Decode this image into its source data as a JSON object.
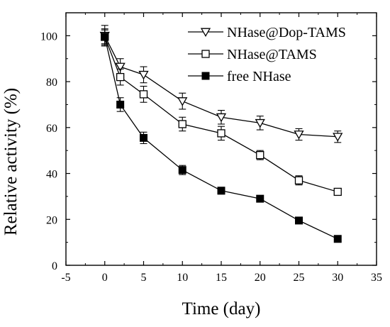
{
  "chart_data": {
    "type": "line",
    "xlabel": "Time (day)",
    "ylabel": "Relative activity (%)",
    "xlim": [
      -5,
      35
    ],
    "ylim": [
      0,
      110
    ],
    "x_ticks": [
      -5,
      0,
      5,
      10,
      15,
      20,
      25,
      30,
      35
    ],
    "y_ticks": [
      0,
      20,
      40,
      60,
      80,
      100
    ],
    "grid": false,
    "legend_position": "top-right",
    "series": [
      {
        "name": "NHase@Dop-TAMS",
        "marker": "triangle-down-open",
        "x": [
          0,
          2,
          5,
          10,
          15,
          20,
          25,
          30
        ],
        "values": [
          100,
          86.5,
          83,
          71.5,
          64.5,
          62,
          57,
          56
        ],
        "errors": [
          4.5,
          3.5,
          3.5,
          3.5,
          3,
          3,
          2.5,
          2.5
        ]
      },
      {
        "name": "NHase@TAMS",
        "marker": "square-open",
        "x": [
          0,
          2,
          5,
          10,
          15,
          20,
          25,
          30
        ],
        "values": [
          99.5,
          82,
          74.5,
          61.5,
          57.5,
          48,
          37,
          32
        ],
        "errors": [
          3.5,
          3.5,
          3.5,
          3,
          3,
          2,
          2,
          1.5
        ]
      },
      {
        "name": "free NHase",
        "marker": "square-filled",
        "x": [
          0,
          2,
          5,
          10,
          15,
          20,
          25,
          30
        ],
        "values": [
          99.5,
          70,
          55.5,
          41.5,
          32.5,
          29,
          19.5,
          11.5
        ],
        "errors": [
          3,
          3,
          2.5,
          2,
          1.5,
          1,
          1,
          1
        ]
      }
    ]
  }
}
